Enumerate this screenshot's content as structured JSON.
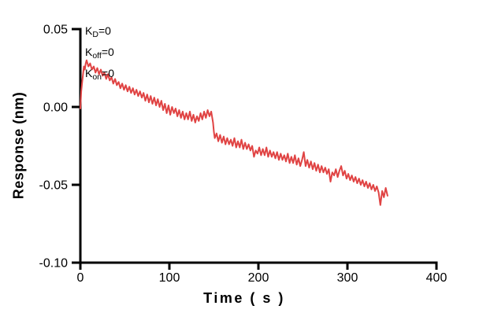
{
  "colors": {
    "background": "#ffffff",
    "axis": "#000000",
    "text": "#000000",
    "trace_red": "#e04343"
  },
  "chart_data": {
    "type": "line",
    "title": "",
    "xlabel": "Time ( s )",
    "ylabel": "Response (nm)",
    "xlim": [
      0,
      400
    ],
    "ylim": [
      -0.1,
      0.05
    ],
    "x_ticks": [
      0,
      100,
      200,
      300,
      400
    ],
    "x_tick_labels": [
      "0",
      "100",
      "200",
      "300",
      "400"
    ],
    "y_ticks": [
      0.05,
      0.0,
      -0.05,
      -0.1
    ],
    "y_tick_labels": [
      "0.05",
      "0.00",
      "-0.05",
      "-0.10"
    ],
    "grid": false,
    "legend": "none",
    "annotations": [
      {
        "prefix": "K",
        "sub": "D",
        "suffix": "=0"
      },
      {
        "prefix": "K",
        "sub": "off",
        "suffix": "=0"
      },
      {
        "prefix": "K",
        "sub": "on",
        "suffix": "=0"
      }
    ],
    "series": [
      {
        "name": "response-trace",
        "color": "#e04343",
        "x": [
          0,
          1,
          2,
          3,
          4,
          5,
          6,
          7,
          9,
          11,
          13,
          15,
          17,
          19,
          21,
          23,
          25,
          27,
          29,
          31,
          33,
          35,
          37,
          39,
          41,
          43,
          45,
          47,
          49,
          51,
          53,
          55,
          57,
          59,
          61,
          63,
          65,
          67,
          69,
          71,
          73,
          75,
          77,
          79,
          81,
          83,
          85,
          87,
          89,
          91,
          93,
          95,
          97,
          99,
          101,
          103,
          105,
          107,
          109,
          111,
          113,
          115,
          117,
          119,
          121,
          123,
          125,
          127,
          129,
          131,
          133,
          135,
          137,
          139,
          141,
          143,
          145,
          147,
          149,
          150,
          151,
          153,
          155,
          157,
          159,
          161,
          163,
          165,
          167,
          169,
          171,
          173,
          175,
          177,
          179,
          181,
          183,
          185,
          187,
          189,
          191,
          193,
          195,
          197,
          199,
          201,
          203,
          205,
          207,
          209,
          211,
          213,
          215,
          217,
          219,
          221,
          223,
          225,
          227,
          229,
          231,
          233,
          235,
          237,
          239,
          241,
          243,
          245,
          247,
          249,
          251,
          253,
          255,
          257,
          259,
          261,
          263,
          265,
          267,
          269,
          271,
          273,
          275,
          277,
          279,
          281,
          283,
          285,
          287,
          289,
          291,
          293,
          295,
          297,
          299,
          301,
          303,
          305,
          307,
          309,
          311,
          313,
          315,
          317,
          319,
          321,
          323,
          325,
          327,
          329,
          331,
          333,
          335,
          337,
          339,
          341,
          343,
          345
        ],
        "y": [
          -0.001,
          0.01,
          0.016,
          0.021,
          0.026,
          0.024,
          0.028,
          0.03,
          0.026,
          0.028,
          0.024,
          0.026,
          0.022,
          0.025,
          0.021,
          0.024,
          0.02,
          0.022,
          0.018,
          0.021,
          0.017,
          0.019,
          0.015,
          0.018,
          0.014,
          0.016,
          0.012,
          0.015,
          0.011,
          0.014,
          0.01,
          0.013,
          0.009,
          0.012,
          0.008,
          0.011,
          0.007,
          0.01,
          0.006,
          0.009,
          0.004,
          0.008,
          0.003,
          0.007,
          0.002,
          0.006,
          0.001,
          0.005,
          0.0,
          0.004,
          -0.002,
          0.002,
          -0.004,
          0.001,
          -0.005,
          0.0,
          -0.004,
          -0.001,
          -0.006,
          -0.002,
          -0.007,
          -0.003,
          -0.008,
          -0.004,
          -0.008,
          -0.003,
          -0.009,
          -0.005,
          -0.01,
          -0.006,
          -0.009,
          -0.004,
          -0.008,
          -0.003,
          -0.007,
          -0.002,
          -0.006,
          -0.003,
          -0.01,
          -0.016,
          -0.02,
          -0.017,
          -0.022,
          -0.018,
          -0.023,
          -0.019,
          -0.024,
          -0.02,
          -0.024,
          -0.021,
          -0.025,
          -0.02,
          -0.026,
          -0.022,
          -0.026,
          -0.021,
          -0.027,
          -0.023,
          -0.027,
          -0.024,
          -0.028,
          -0.025,
          -0.032,
          -0.028,
          -0.03,
          -0.026,
          -0.031,
          -0.027,
          -0.031,
          -0.026,
          -0.032,
          -0.028,
          -0.032,
          -0.029,
          -0.033,
          -0.029,
          -0.034,
          -0.03,
          -0.034,
          -0.031,
          -0.035,
          -0.03,
          -0.036,
          -0.032,
          -0.036,
          -0.031,
          -0.037,
          -0.033,
          -0.038,
          -0.034,
          -0.029,
          -0.038,
          -0.034,
          -0.039,
          -0.035,
          -0.04,
          -0.036,
          -0.041,
          -0.037,
          -0.042,
          -0.038,
          -0.042,
          -0.039,
          -0.043,
          -0.04,
          -0.048,
          -0.042,
          -0.044,
          -0.04,
          -0.045,
          -0.041,
          -0.038,
          -0.044,
          -0.041,
          -0.046,
          -0.043,
          -0.047,
          -0.044,
          -0.048,
          -0.045,
          -0.049,
          -0.046,
          -0.05,
          -0.047,
          -0.051,
          -0.048,
          -0.052,
          -0.049,
          -0.053,
          -0.05,
          -0.054,
          -0.051,
          -0.055,
          -0.063,
          -0.054,
          -0.058,
          -0.052,
          -0.057
        ]
      }
    ]
  }
}
